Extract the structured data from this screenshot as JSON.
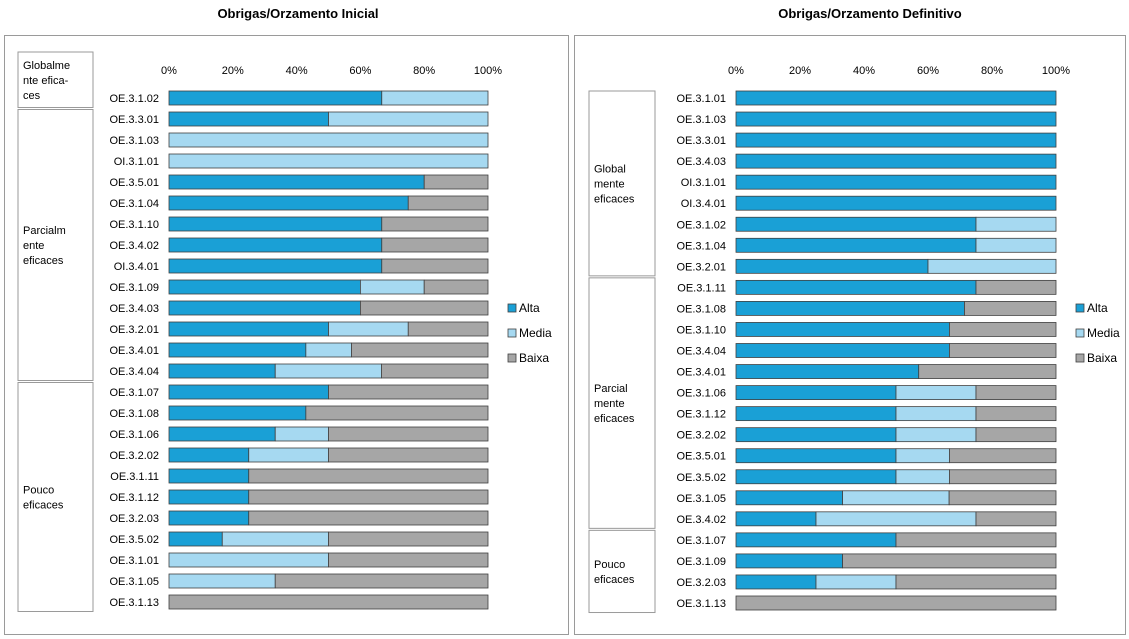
{
  "colors": {
    "alta": "#1AA0D6",
    "media": "#A6D9F1",
    "baixa": "#A6A6A6",
    "bar_border": "#404040"
  },
  "chart_data": [
    {
      "type": "bar",
      "orientation": "horizontal",
      "stacked": "percent",
      "title": "Obrigas/Orzamento Inicial",
      "xlim": [
        0,
        100
      ],
      "x_ticks": [
        "0%",
        "20%",
        "40%",
        "60%",
        "80%",
        "100%"
      ],
      "legend_position": "right",
      "grid": false,
      "categories": [
        "OE.3.1.02",
        "OE.3.3.01",
        "OE.3.1.03",
        "OI.3.1.01",
        "OE.3.5.01",
        "OE.3.1.04",
        "OE.3.1.10",
        "OE.3.4.02",
        "OI.3.4.01",
        "OE.3.1.09",
        "OE.3.4.03",
        "OE.3.2.01",
        "OE.3.4.01",
        "OE.3.4.04",
        "OE.3.1.07",
        "OE.3.1.08",
        "OE.3.1.06",
        "OE.3.2.02",
        "OE.3.1.11",
        "OE.3.1.12",
        "OE.3.2.03",
        "OE.3.5.02",
        "OE.3.1.01",
        "OE.3.1.05",
        "OE.3.1.13"
      ],
      "series": [
        {
          "name": "Alta",
          "values": [
            66.7,
            50,
            0,
            0,
            80,
            75,
            66.7,
            66.7,
            66.7,
            60,
            60,
            50,
            42.9,
            33.3,
            50,
            42.9,
            33.3,
            25,
            25,
            25,
            25,
            16.7,
            0,
            0,
            0
          ]
        },
        {
          "name": "Media",
          "values": [
            33.3,
            50,
            100,
            100,
            0,
            0,
            0,
            0,
            0,
            20,
            0,
            25,
            14.3,
            33.3,
            0,
            0,
            16.7,
            25,
            0,
            0,
            0,
            33.3,
            50,
            33.3,
            0
          ]
        },
        {
          "name": "Baixa",
          "values": [
            0,
            0,
            0,
            0,
            20,
            25,
            33.3,
            33.3,
            33.3,
            20,
            40,
            25,
            42.8,
            33.4,
            50,
            57.1,
            50,
            50,
            75,
            75,
            75,
            50,
            50,
            66.7,
            100
          ]
        }
      ],
      "groups": [
        {
          "label": "Globalme nte efica- ces",
          "lines": [
            "Globalme",
            "nte efica-",
            "ces"
          ],
          "rows": [
            0,
            0
          ]
        },
        {
          "label": "Parcialm ente eficaces",
          "lines": [
            "Parcialm",
            "ente",
            "eficaces"
          ],
          "rows": [
            1,
            13
          ]
        },
        {
          "label": "Pouco eficaces",
          "lines": [
            "Pouco",
            "eficaces"
          ],
          "rows": [
            14,
            24
          ]
        }
      ]
    },
    {
      "type": "bar",
      "orientation": "horizontal",
      "stacked": "percent",
      "title": "Obrigas/Orzamento Definitivo",
      "xlim": [
        0,
        100
      ],
      "x_ticks": [
        "0%",
        "20%",
        "40%",
        "60%",
        "80%",
        "100%"
      ],
      "legend_position": "right",
      "grid": false,
      "categories": [
        "OE.3.1.01",
        "OE.3.1.03",
        "OE.3.3.01",
        "OE.3.4.03",
        "OI.3.1.01",
        "OI.3.4.01",
        "OE.3.1.02",
        "OE.3.1.04",
        "OE.3.2.01",
        "OE.3.1.11",
        "OE.3.1.08",
        "OE.3.1.10",
        "OE.3.4.04",
        "OE.3.4.01",
        "OE.3.1.06",
        "OE.3.1.12",
        "OE.3.2.02",
        "OE.3.5.01",
        "OE.3.5.02",
        "OE.3.1.05",
        "OE.3.4.02",
        "OE.3.1.07",
        "OE.3.1.09",
        "OE.3.2.03",
        "OE.3.1.13"
      ],
      "series": [
        {
          "name": "Alta",
          "values": [
            100,
            100,
            100,
            100,
            100,
            100,
            75,
            75,
            60,
            75,
            71.4,
            66.7,
            66.7,
            57.1,
            50,
            50,
            50,
            50,
            50,
            33.3,
            25,
            50,
            33.3,
            25,
            0
          ]
        },
        {
          "name": "Media",
          "values": [
            0,
            0,
            0,
            0,
            0,
            0,
            25,
            25,
            40,
            0,
            0,
            0,
            0,
            0,
            25,
            25,
            25,
            16.7,
            16.7,
            33.3,
            50,
            0,
            0,
            25,
            0
          ]
        },
        {
          "name": "Baixa",
          "values": [
            0,
            0,
            0,
            0,
            0,
            0,
            0,
            0,
            0,
            25,
            28.6,
            33.3,
            33.3,
            42.9,
            25,
            25,
            25,
            33.3,
            33.3,
            33.4,
            25,
            50,
            66.7,
            50,
            100
          ]
        }
      ],
      "groups": [
        {
          "label": "Global mente eficaces",
          "lines": [
            "Global",
            "mente",
            "eficaces"
          ],
          "rows": [
            0,
            8
          ]
        },
        {
          "label": "Parcial mente eficaces",
          "lines": [
            "Parcial",
            "mente",
            "eficaces"
          ],
          "rows": [
            9,
            20
          ]
        },
        {
          "label": "Pouco eficaces",
          "lines": [
            "Pouco",
            "eficaces"
          ],
          "rows": [
            21,
            24
          ]
        }
      ]
    }
  ]
}
